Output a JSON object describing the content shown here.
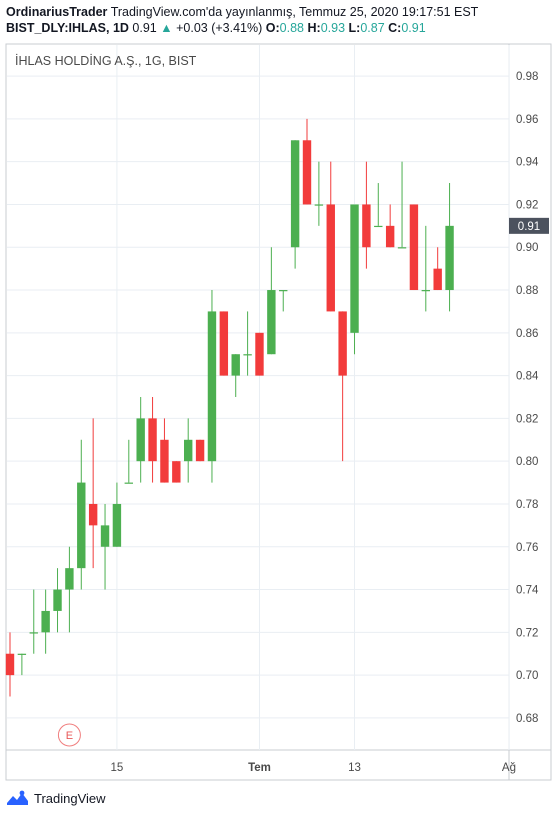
{
  "header": {
    "author": "OrdinariusTrader",
    "published": "TradingView.com'da yayınlanmış, Temmuz 25, 2020 19:17:51 EST",
    "symbol": "BIST_DLY:IHLAS, 1D",
    "last": "0.91",
    "change_arrow": "▲",
    "change": "+0.03 (+3.41%)",
    "o_label": "O:",
    "o_val": "0.88",
    "h_label": "H:",
    "h_val": "0.93",
    "l_label": "L:",
    "l_val": "0.87",
    "c_label": "C:",
    "c_val": "0.91"
  },
  "footer": {
    "brand": "TradingView",
    "logo_icon": "tradingview-logo-icon"
  },
  "colors": {
    "up": "#4caf50",
    "down": "#f23b3b",
    "grid": "#e9eef3",
    "axis_text": "#4a4a4a",
    "price_tag_bg": "#4c525e"
  },
  "chart_data": {
    "type": "candlestick",
    "title": "İHLAS HOLDİNG A.Ş., 1G, BIST",
    "y_range": [
      0.665,
      0.995
    ],
    "y_ticks": [
      "0.68",
      "0.70",
      "0.72",
      "0.74",
      "0.76",
      "0.78",
      "0.80",
      "0.82",
      "0.84",
      "0.86",
      "0.88",
      "0.90",
      "0.92",
      "0.94",
      "0.96",
      "0.98"
    ],
    "x_ticks": [
      {
        "label": "15",
        "index": 9
      },
      {
        "label": "Tem",
        "index": 21
      },
      {
        "label": "13",
        "index": 29
      },
      {
        "label": "Ağ",
        "index": 42
      }
    ],
    "last_price": "0.91",
    "event_marker": {
      "label": "E",
      "index": 5
    },
    "candles": [
      {
        "o": 0.71,
        "h": 0.72,
        "l": 0.69,
        "c": 0.7
      },
      {
        "o": 0.71,
        "h": 0.71,
        "l": 0.7,
        "c": 0.71
      },
      {
        "o": 0.72,
        "h": 0.74,
        "l": 0.71,
        "c": 0.72
      },
      {
        "o": 0.72,
        "h": 0.74,
        "l": 0.71,
        "c": 0.73
      },
      {
        "o": 0.73,
        "h": 0.75,
        "l": 0.72,
        "c": 0.74
      },
      {
        "o": 0.74,
        "h": 0.76,
        "l": 0.72,
        "c": 0.75
      },
      {
        "o": 0.75,
        "h": 0.81,
        "l": 0.74,
        "c": 0.79
      },
      {
        "o": 0.78,
        "h": 0.82,
        "l": 0.75,
        "c": 0.77
      },
      {
        "o": 0.76,
        "h": 0.78,
        "l": 0.74,
        "c": 0.77
      },
      {
        "o": 0.76,
        "h": 0.79,
        "l": 0.76,
        "c": 0.78
      },
      {
        "o": 0.79,
        "h": 0.81,
        "l": 0.79,
        "c": 0.79
      },
      {
        "o": 0.8,
        "h": 0.83,
        "l": 0.79,
        "c": 0.82
      },
      {
        "o": 0.82,
        "h": 0.83,
        "l": 0.79,
        "c": 0.8
      },
      {
        "o": 0.81,
        "h": 0.82,
        "l": 0.79,
        "c": 0.79
      },
      {
        "o": 0.8,
        "h": 0.8,
        "l": 0.79,
        "c": 0.79
      },
      {
        "o": 0.8,
        "h": 0.82,
        "l": 0.79,
        "c": 0.81
      },
      {
        "o": 0.81,
        "h": 0.81,
        "l": 0.8,
        "c": 0.8
      },
      {
        "o": 0.8,
        "h": 0.88,
        "l": 0.79,
        "c": 0.87
      },
      {
        "o": 0.87,
        "h": 0.87,
        "l": 0.84,
        "c": 0.84
      },
      {
        "o": 0.84,
        "h": 0.85,
        "l": 0.83,
        "c": 0.85
      },
      {
        "o": 0.85,
        "h": 0.87,
        "l": 0.84,
        "c": 0.85
      },
      {
        "o": 0.86,
        "h": 0.86,
        "l": 0.84,
        "c": 0.84
      },
      {
        "o": 0.85,
        "h": 0.9,
        "l": 0.85,
        "c": 0.88
      },
      {
        "o": 0.88,
        "h": 0.88,
        "l": 0.87,
        "c": 0.88
      },
      {
        "o": 0.9,
        "h": 0.95,
        "l": 0.89,
        "c": 0.95
      },
      {
        "o": 0.95,
        "h": 0.96,
        "l": 0.92,
        "c": 0.92
      },
      {
        "o": 0.92,
        "h": 0.94,
        "l": 0.91,
        "c": 0.92
      },
      {
        "o": 0.92,
        "h": 0.94,
        "l": 0.87,
        "c": 0.87
      },
      {
        "o": 0.87,
        "h": 0.87,
        "l": 0.8,
        "c": 0.84
      },
      {
        "o": 0.86,
        "h": 0.92,
        "l": 0.85,
        "c": 0.92
      },
      {
        "o": 0.92,
        "h": 0.94,
        "l": 0.89,
        "c": 0.9
      },
      {
        "o": 0.91,
        "h": 0.93,
        "l": 0.91,
        "c": 0.91
      },
      {
        "o": 0.91,
        "h": 0.92,
        "l": 0.9,
        "c": 0.9
      },
      {
        "o": 0.9,
        "h": 0.94,
        "l": 0.9,
        "c": 0.9
      },
      {
        "o": 0.92,
        "h": 0.92,
        "l": 0.88,
        "c": 0.88
      },
      {
        "o": 0.88,
        "h": 0.91,
        "l": 0.87,
        "c": 0.88
      },
      {
        "o": 0.89,
        "h": 0.9,
        "l": 0.88,
        "c": 0.88
      },
      {
        "o": 0.88,
        "h": 0.93,
        "l": 0.87,
        "c": 0.91
      }
    ]
  }
}
